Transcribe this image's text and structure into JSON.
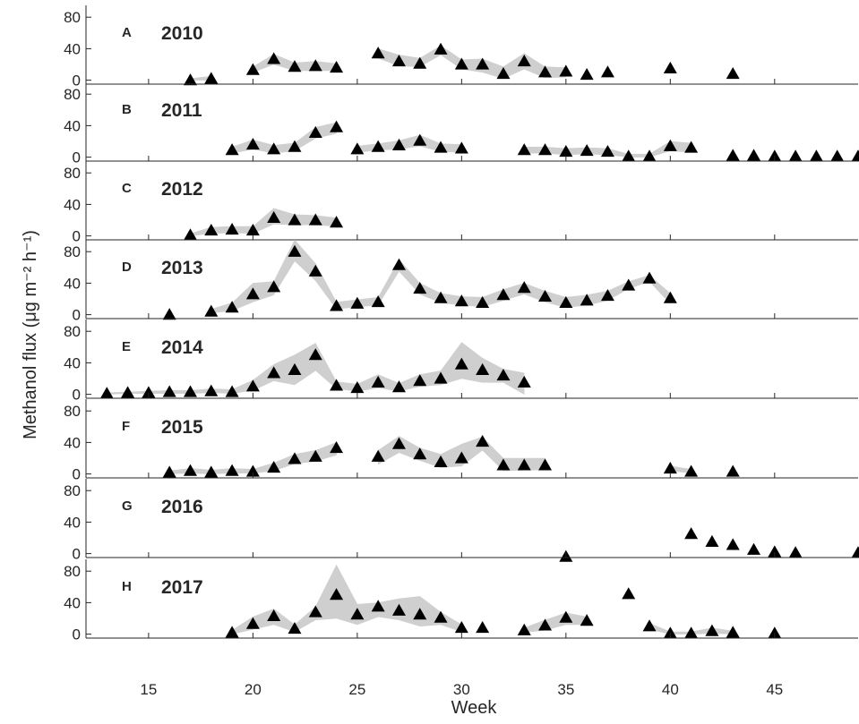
{
  "figure": {
    "xlabel": "Week",
    "ylabel": "Methanol flux (μg m⁻² h⁻¹)",
    "colors": {
      "marker": "#000000",
      "band": "#cfcfcf",
      "axis": "#262626"
    }
  },
  "chart_data": [
    {
      "panel": "A",
      "title": "2010",
      "type": "scatter",
      "xlim": [
        12,
        49
      ],
      "ylim": [
        -5,
        95
      ],
      "yticks": [
        0,
        40,
        80
      ],
      "xticks": [
        15,
        20,
        25,
        30,
        35,
        40,
        45
      ],
      "x": [
        17,
        18,
        20,
        21,
        22,
        23,
        24,
        26,
        27,
        28,
        29,
        30,
        31,
        32,
        33,
        34,
        35,
        36,
        37,
        40,
        43
      ],
      "y": [
        0,
        2,
        13,
        27,
        17,
        18,
        16,
        34,
        24,
        21,
        39,
        20,
        20,
        8,
        24,
        10,
        11,
        7,
        10,
        15,
        8
      ],
      "band": [
        {
          "x": [
            17,
            18
          ],
          "lower": [
            0,
            0
          ],
          "upper": [
            2,
            5
          ]
        },
        {
          "x": [
            20,
            21,
            22,
            23,
            24
          ],
          "lower": [
            10,
            20,
            12,
            12,
            12
          ],
          "upper": [
            17,
            33,
            22,
            24,
            21
          ]
        },
        {
          "x": [
            26,
            27,
            28,
            29,
            30,
            31,
            32,
            33,
            34,
            35
          ],
          "lower": [
            28,
            18,
            17,
            32,
            14,
            10,
            2,
            14,
            3,
            4
          ],
          "upper": [
            40,
            32,
            28,
            44,
            26,
            27,
            17,
            34,
            17,
            16
          ]
        }
      ]
    },
    {
      "panel": "B",
      "title": "2011",
      "type": "scatter",
      "xlim": [
        12,
        49
      ],
      "ylim": [
        -5,
        95
      ],
      "yticks": [
        0,
        40,
        80
      ],
      "xticks": [
        15,
        20,
        25,
        30,
        35,
        40,
        45
      ],
      "x": [
        19,
        20,
        21,
        22,
        23,
        24,
        25,
        26,
        27,
        28,
        29,
        30,
        33,
        34,
        35,
        36,
        37,
        38,
        39,
        40,
        41,
        43,
        44,
        45,
        46,
        47,
        48,
        49
      ],
      "y": [
        9,
        16,
        10,
        13,
        31,
        38,
        10,
        13,
        15,
        21,
        12,
        11,
        9,
        9,
        7,
        8,
        7,
        1,
        1,
        14,
        12,
        2,
        2,
        1,
        1,
        1,
        1,
        1
      ],
      "band": [
        {
          "x": [
            19,
            20,
            21,
            22,
            23,
            24
          ],
          "lower": [
            5,
            10,
            5,
            8,
            24,
            30
          ],
          "upper": [
            13,
            22,
            15,
            18,
            38,
            44
          ]
        },
        {
          "x": [
            25,
            26,
            27,
            28,
            29,
            30
          ],
          "lower": [
            6,
            9,
            10,
            14,
            7,
            6
          ],
          "upper": [
            14,
            17,
            21,
            28,
            17,
            16
          ]
        },
        {
          "x": [
            33,
            34,
            35,
            36,
            37,
            38,
            39,
            40,
            41
          ],
          "lower": [
            5,
            5,
            3,
            4,
            3,
            0,
            0,
            8,
            6
          ],
          "upper": [
            13,
            13,
            11,
            12,
            11,
            4,
            4,
            20,
            18
          ]
        }
      ]
    },
    {
      "panel": "C",
      "title": "2012",
      "type": "scatter",
      "xlim": [
        12,
        49
      ],
      "ylim": [
        -5,
        95
      ],
      "yticks": [
        0,
        40,
        80
      ],
      "xticks": [
        15,
        20,
        25,
        30,
        35,
        40,
        45
      ],
      "x": [
        17,
        18,
        19,
        20,
        21,
        22,
        23,
        24
      ],
      "y": [
        1,
        7,
        8,
        7,
        23,
        20,
        20,
        17
      ],
      "band": [
        {
          "x": [
            17,
            18,
            19,
            20,
            21,
            22,
            23,
            24
          ],
          "lower": [
            0,
            3,
            4,
            3,
            15,
            14,
            14,
            12
          ],
          "upper": [
            3,
            11,
            12,
            12,
            35,
            27,
            26,
            23
          ]
        }
      ]
    },
    {
      "panel": "D",
      "title": "2013",
      "type": "scatter",
      "xlim": [
        12,
        49
      ],
      "ylim": [
        -5,
        95
      ],
      "yticks": [
        0,
        40,
        80
      ],
      "xticks": [
        15,
        20,
        25,
        30,
        35,
        40,
        45
      ],
      "x": [
        16,
        18,
        19,
        20,
        21,
        22,
        23,
        24,
        25,
        26,
        27,
        28,
        29,
        30,
        31,
        32,
        33,
        34,
        35,
        36,
        37,
        38,
        39,
        40
      ],
      "y": [
        0,
        4,
        9,
        26,
        35,
        80,
        55,
        11,
        14,
        16,
        63,
        33,
        21,
        17,
        15,
        25,
        34,
        23,
        15,
        18,
        24,
        37,
        46,
        21
      ],
      "band": [
        {
          "x": [
            18,
            19,
            20,
            21,
            22,
            23,
            24,
            25,
            26,
            27,
            28,
            29,
            30,
            31,
            32,
            33,
            34,
            35,
            36,
            37,
            38,
            39,
            40
          ],
          "lower": [
            2,
            5,
            16,
            25,
            68,
            43,
            7,
            10,
            12,
            55,
            26,
            15,
            12,
            10,
            18,
            26,
            16,
            9,
            12,
            18,
            33,
            42,
            14
          ],
          "upper": [
            7,
            15,
            40,
            42,
            95,
            65,
            16,
            19,
            22,
            70,
            40,
            27,
            23,
            22,
            32,
            40,
            30,
            22,
            25,
            30,
            42,
            50,
            27
          ]
        }
      ]
    },
    {
      "panel": "E",
      "title": "2014",
      "type": "scatter",
      "xlim": [
        12,
        49
      ],
      "ylim": [
        -5,
        95
      ],
      "yticks": [
        0,
        40,
        80
      ],
      "xticks": [
        15,
        20,
        25,
        30,
        35,
        40,
        45
      ],
      "x": [
        13,
        14,
        15,
        16,
        17,
        18,
        19,
        20,
        21,
        22,
        23,
        24,
        25,
        26,
        27,
        28,
        29,
        30,
        31,
        32,
        33
      ],
      "y": [
        1,
        2,
        2,
        3,
        3,
        4,
        3,
        10,
        27,
        31,
        50,
        11,
        8,
        15,
        9,
        17,
        20,
        38,
        31,
        24,
        15
      ],
      "band": [
        {
          "x": [
            13,
            14,
            15,
            16,
            17,
            18,
            19,
            20,
            21,
            22,
            23,
            24,
            25,
            26,
            27,
            28,
            29,
            30,
            31,
            32,
            33
          ],
          "lower": [
            0,
            1,
            1,
            1,
            1,
            2,
            1,
            5,
            17,
            12,
            30,
            7,
            4,
            8,
            4,
            10,
            12,
            20,
            15,
            15,
            0
          ],
          "upper": [
            2,
            3,
            4,
            5,
            5,
            7,
            6,
            18,
            38,
            50,
            65,
            16,
            13,
            25,
            14,
            25,
            30,
            66,
            46,
            32,
            27
          ]
        }
      ]
    },
    {
      "panel": "F",
      "title": "2015",
      "type": "scatter",
      "xlim": [
        12,
        49
      ],
      "ylim": [
        -5,
        95
      ],
      "yticks": [
        0,
        40,
        80
      ],
      "xticks": [
        15,
        20,
        25,
        30,
        35,
        40,
        45
      ],
      "x": [
        16,
        17,
        18,
        19,
        20,
        21,
        22,
        23,
        24,
        26,
        27,
        28,
        29,
        30,
        31,
        32,
        33,
        34,
        40,
        41,
        43
      ],
      "y": [
        2,
        4,
        2,
        4,
        3,
        8,
        19,
        22,
        33,
        22,
        38,
        25,
        15,
        20,
        41,
        11,
        11,
        11,
        7,
        3,
        3
      ],
      "band": [
        {
          "x": [
            16,
            17,
            18,
            19,
            20,
            21,
            22,
            23,
            24
          ],
          "lower": [
            0,
            1,
            0,
            1,
            1,
            4,
            13,
            16,
            24
          ],
          "upper": [
            4,
            7,
            5,
            7,
            6,
            14,
            25,
            30,
            40
          ]
        },
        {
          "x": [
            26,
            27,
            28,
            29,
            30,
            31,
            32,
            33,
            34
          ],
          "lower": [
            12,
            27,
            17,
            8,
            10,
            30,
            4,
            5,
            5
          ],
          "upper": [
            30,
            48,
            33,
            25,
            38,
            47,
            20,
            20,
            20
          ]
        },
        {
          "x": [
            40,
            41
          ],
          "lower": [
            4,
            1
          ],
          "upper": [
            10,
            6
          ]
        }
      ]
    },
    {
      "panel": "G",
      "title": "2016",
      "type": "scatter",
      "xlim": [
        12,
        49
      ],
      "ylim": [
        -5,
        95
      ],
      "yticks": [
        0,
        40,
        80
      ],
      "xticks": [
        15,
        20,
        25,
        30,
        35,
        40,
        45
      ],
      "x": [
        35,
        41,
        42,
        43,
        44,
        45,
        46,
        49
      ],
      "y": [
        -4,
        25,
        15,
        11,
        5,
        2,
        1,
        1
      ],
      "band": []
    },
    {
      "panel": "H",
      "title": "2017",
      "type": "scatter",
      "xlim": [
        12,
        49
      ],
      "ylim": [
        -5,
        95
      ],
      "yticks": [
        0,
        40,
        80
      ],
      "xticks": [
        15,
        20,
        25,
        30,
        35,
        40,
        45
      ],
      "x": [
        19,
        20,
        21,
        22,
        23,
        24,
        25,
        26,
        27,
        28,
        29,
        30,
        31,
        33,
        34,
        35,
        36,
        38,
        39,
        40,
        41,
        42,
        43,
        45
      ],
      "y": [
        2,
        13,
        23,
        7,
        28,
        50,
        25,
        35,
        30,
        25,
        21,
        8,
        8,
        5,
        11,
        21,
        17,
        51,
        10,
        1,
        1,
        4,
        2,
        1
      ],
      "band": [
        {
          "x": [
            19,
            20,
            21,
            22,
            23,
            24,
            25,
            26,
            27,
            28,
            29,
            30
          ],
          "lower": [
            0,
            6,
            12,
            3,
            18,
            20,
            12,
            22,
            18,
            10,
            12,
            3
          ],
          "upper": [
            5,
            22,
            32,
            12,
            35,
            88,
            38,
            40,
            45,
            48,
            28,
            12
          ]
        },
        {
          "x": [
            33,
            34,
            35,
            36
          ],
          "lower": [
            2,
            5,
            12,
            12
          ],
          "upper": [
            8,
            18,
            27,
            22
          ]
        },
        {
          "x": [
            39,
            40,
            41,
            42,
            43
          ],
          "lower": [
            6,
            0,
            0,
            1,
            0
          ],
          "upper": [
            14,
            3,
            3,
            8,
            4
          ]
        }
      ]
    }
  ]
}
